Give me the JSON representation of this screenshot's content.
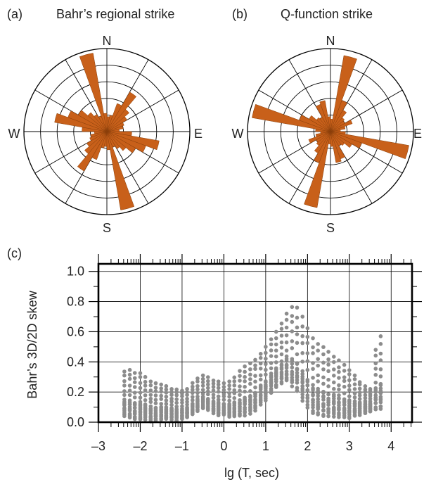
{
  "colors": {
    "petal": "#c8601a",
    "petal_stroke": "#8a3f0a",
    "point": "#8c8c8c",
    "grid": "#000000"
  },
  "panels": {
    "a": {
      "label": "(a)",
      "title": "Bahr’s regional strike"
    },
    "b": {
      "label": "(b)",
      "title": "Q-function strike"
    },
    "c": {
      "label": "(c)"
    }
  },
  "chart_data": [
    {
      "type": "rose",
      "panel": "a",
      "title": "Bahr’s regional strike",
      "directions": [
        "N",
        "E",
        "S",
        "W"
      ],
      "bin_width_deg": 10,
      "ring_count": 5,
      "bin_centers_deg": [
        5,
        15,
        25,
        35,
        45,
        55,
        65,
        75,
        85,
        95,
        105,
        115,
        125,
        135,
        145,
        155,
        165,
        175
      ],
      "values": [
        0.18,
        0.2,
        0.36,
        0.55,
        0.35,
        0.28,
        0.22,
        0.2,
        0.15,
        0.3,
        0.64,
        0.5,
        0.4,
        0.3,
        0.24,
        0.2,
        0.96,
        0.22
      ]
    },
    {
      "type": "rose",
      "panel": "b",
      "title": "Q-function strike",
      "directions": [
        "N",
        "E",
        "S",
        "W"
      ],
      "bin_width_deg": 10,
      "ring_count": 5,
      "bin_centers_deg": [
        5,
        15,
        25,
        35,
        45,
        55,
        65,
        75,
        85,
        95,
        105,
        115,
        125,
        135,
        145,
        155,
        165,
        175
      ],
      "values": [
        0.15,
        0.93,
        0.4,
        0.3,
        0.22,
        0.2,
        0.28,
        0.18,
        0.12,
        0.18,
        0.96,
        0.4,
        0.3,
        0.22,
        0.2,
        0.35,
        0.38,
        0.18
      ]
    },
    {
      "type": "scatter",
      "panel": "c",
      "xlabel": "lg (T, sec)",
      "ylabel": "Bahr’s 3D/2D skew",
      "xlim": [
        -3,
        4.5
      ],
      "ylim": [
        0,
        1.05
      ],
      "xticks": [
        -3,
        -2,
        -1,
        0,
        1,
        2,
        3,
        4
      ],
      "xtick_labels": [
        "–3",
        "–2",
        "–1",
        "0",
        "1",
        "2",
        "3",
        "4"
      ],
      "yticks": [
        0,
        0.2,
        0.4,
        0.6,
        0.8,
        1.0
      ],
      "ytick_labels": [
        "0.0",
        "0.2",
        "0.4",
        "0.6",
        "0.8",
        "1.0"
      ],
      "grid": true,
      "x_columns": [
        -2.38,
        -2.25,
        -2.13,
        -2.0,
        -1.88,
        -1.75,
        -1.63,
        -1.5,
        -1.38,
        -1.25,
        -1.13,
        -1.0,
        -0.88,
        -0.75,
        -0.63,
        -0.5,
        -0.38,
        -0.25,
        -0.13,
        0.0,
        0.13,
        0.25,
        0.38,
        0.5,
        0.63,
        0.75,
        0.88,
        1.0,
        1.13,
        1.25,
        1.38,
        1.5,
        1.63,
        1.75,
        1.88,
        2.0,
        2.13,
        2.25,
        2.38,
        2.5,
        2.63,
        2.75,
        2.88,
        3.0,
        3.13,
        3.25,
        3.38,
        3.5,
        3.63,
        3.75
      ],
      "column_max": [
        0.34,
        0.35,
        0.33,
        0.33,
        0.3,
        0.27,
        0.26,
        0.25,
        0.24,
        0.22,
        0.22,
        0.21,
        0.22,
        0.26,
        0.29,
        0.31,
        0.3,
        0.28,
        0.27,
        0.26,
        0.27,
        0.3,
        0.34,
        0.37,
        0.39,
        0.42,
        0.46,
        0.5,
        0.55,
        0.6,
        0.66,
        0.72,
        0.77,
        0.76,
        0.7,
        0.63,
        0.56,
        0.52,
        0.5,
        0.47,
        0.44,
        0.41,
        0.38,
        0.35,
        0.31,
        0.27,
        0.24,
        0.22,
        0.48,
        0.57
      ],
      "column_min": [
        0.04,
        0.03,
        0.02,
        0.02,
        0.02,
        0.01,
        0.01,
        0.02,
        0.02,
        0.02,
        0.01,
        0.02,
        0.03,
        0.05,
        0.07,
        0.09,
        0.08,
        0.06,
        0.05,
        0.05,
        0.04,
        0.04,
        0.04,
        0.05,
        0.06,
        0.08,
        0.12,
        0.15,
        0.19,
        0.23,
        0.26,
        0.27,
        0.24,
        0.2,
        0.15,
        0.1,
        0.06,
        0.05,
        0.04,
        0.04,
        0.04,
        0.04,
        0.03,
        0.03,
        0.04,
        0.05,
        0.06,
        0.07,
        0.08,
        0.08
      ],
      "points_per_column": 18
    }
  ]
}
